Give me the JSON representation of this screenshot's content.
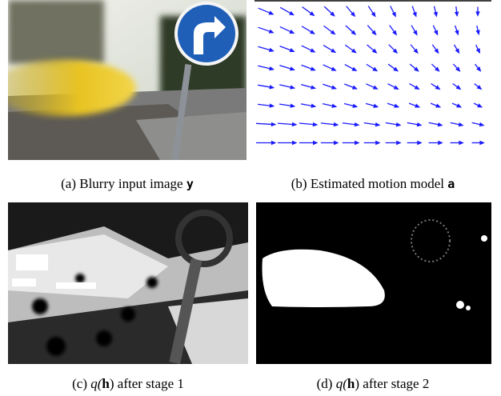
{
  "subfigures": [
    {
      "label": "(a)",
      "text": "Blurry input image",
      "math": [
        "y"
      ]
    },
    {
      "label": "(b)",
      "text": "Estimated motion model",
      "math": [
        "a"
      ]
    },
    {
      "label": "(c)",
      "math": [
        "q(",
        "h",
        ")"
      ],
      "text": "after stage 1"
    },
    {
      "label": "(d)",
      "math": [
        "q(",
        "h",
        ")"
      ],
      "text": "after stage 2"
    }
  ]
}
